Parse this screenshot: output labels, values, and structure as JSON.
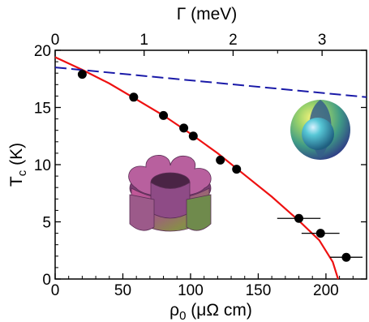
{
  "chart_data": {
    "type": "scatter",
    "xlabel": "ρ₀ (μΩ cm)",
    "xlabel_main": "ρ",
    "xlabel_sub": "0",
    "xlabel_unit": " (μΩ cm)",
    "ylabel_main": "T",
    "ylabel_sub": "c",
    "ylabel_unit": " (K)",
    "top_xlabel": "Γ (meV)",
    "xlim": [
      0,
      230
    ],
    "ylim": [
      0,
      20
    ],
    "top_xlim": [
      0,
      3.5
    ],
    "x_ticks": [
      0,
      50,
      100,
      150,
      200
    ],
    "y_ticks": [
      0,
      5,
      10,
      15,
      20
    ],
    "top_ticks": [
      0,
      1,
      2,
      3
    ],
    "series": [
      {
        "kind": "points",
        "color": "#000000",
        "points": [
          {
            "x": 20,
            "y": 17.9,
            "xerr": 0
          },
          {
            "x": 58,
            "y": 15.9,
            "xerr": 0
          },
          {
            "x": 80,
            "y": 14.3,
            "xerr": 0
          },
          {
            "x": 95,
            "y": 13.2,
            "xerr": 0
          },
          {
            "x": 102,
            "y": 12.5,
            "xerr": 0
          },
          {
            "x": 122,
            "y": 10.4,
            "xerr": 0
          },
          {
            "x": 134,
            "y": 9.6,
            "xerr": 0
          },
          {
            "x": 180,
            "y": 5.3,
            "xerr": 16
          },
          {
            "x": 196,
            "y": 4.0,
            "xerr": 14
          },
          {
            "x": 215,
            "y": 1.9,
            "xerr": 12
          }
        ]
      },
      {
        "kind": "curve",
        "color": "#ee1111",
        "style": "solid",
        "points": [
          [
            0,
            19.4
          ],
          [
            20,
            18.3
          ],
          [
            40,
            17.1
          ],
          [
            60,
            15.7
          ],
          [
            80,
            14.3
          ],
          [
            100,
            12.7
          ],
          [
            120,
            11.0
          ],
          [
            140,
            9.1
          ],
          [
            160,
            7.2
          ],
          [
            180,
            5.1
          ],
          [
            195,
            3.4
          ],
          [
            205,
            1.5
          ],
          [
            209,
            0
          ]
        ]
      },
      {
        "kind": "curve",
        "color": "#1a1aa8",
        "style": "dashed",
        "points": [
          [
            0,
            18.5
          ],
          [
            230,
            15.9
          ]
        ]
      }
    ],
    "insets": [
      {
        "name": "flower-fermi-surface",
        "description_icon": "flower-shaped-cylinder-icon"
      },
      {
        "name": "spherical-fermi-surface",
        "description_icon": "nested-sphere-icon"
      }
    ]
  }
}
